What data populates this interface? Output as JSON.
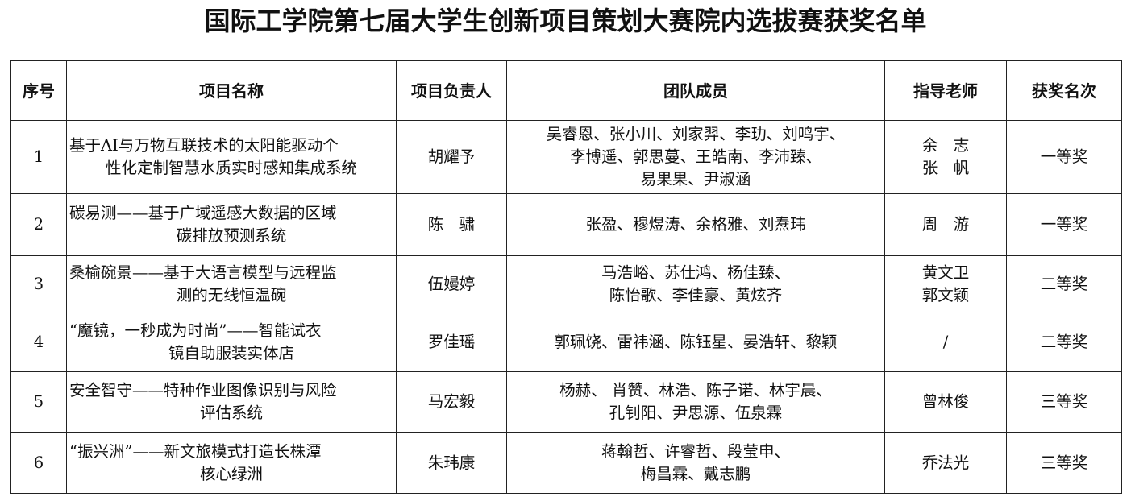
{
  "title": "国际工学院第七届大学生创新项目策划大赛院内选拔赛获奖名单",
  "headers": [
    "序号",
    "项目名称",
    "项目负责人",
    "团队成员",
    "指导老师",
    "获奖名次"
  ],
  "rows": [
    {
      "no": "1",
      "project": [
        "基于AI与万物互联技术的太阳能驱动个",
        "性化定制智慧水质实时感知集成系统"
      ],
      "leader": "胡耀予",
      "members": [
        "吴睿恩、张小川、刘家羿、李玏、刘鸣宇、",
        "李博遥、郭思蔓、王皓南、李沛臻、",
        "易果果、尹淑涵"
      ],
      "advisor": [
        "余　志",
        "张　帆"
      ],
      "award": "一等奖"
    },
    {
      "no": "2",
      "project": [
        "碳易测——基于广域遥感大数据的区域",
        "碳排放预测系统"
      ],
      "leader": "陈　骕",
      "members": [
        "张盈、穆煜涛、余格雅、刘焘玮"
      ],
      "advisor": [
        "周　游"
      ],
      "award": "一等奖"
    },
    {
      "no": "3",
      "project": [
        "桑榆碗景——基于大语言模型与远程监",
        "测的无线恒温碗"
      ],
      "leader": "伍嫚婷",
      "members": [
        "马浩峪、苏仕鸿、杨佳臻、",
        "陈怡歌、李佳豪、黄炫齐"
      ],
      "advisor": [
        "黄文卫",
        "郭文颖"
      ],
      "award": "二等奖"
    },
    {
      "no": "4",
      "project": [
        "“魔镜，一秒成为时尚”——智能试衣",
        "镜自助服装实体店"
      ],
      "leader": "罗佳瑶",
      "members": [
        "郭珮饶、雷祎涵、陈钰星、晏浩轩、黎颖"
      ],
      "advisor": [
        "/"
      ],
      "award": "二等奖"
    },
    {
      "no": "5",
      "project": [
        "安全智守——特种作业图像识别与风险",
        "评估系统"
      ],
      "leader": "马宏毅",
      "members": [
        "杨赫、 肖赞、林浩、陈子诺、林宇晨、",
        "孔钊阳、尹思源、伍泉霖"
      ],
      "advisor": [
        "曾林俊"
      ],
      "award": "三等奖"
    },
    {
      "no": "6",
      "project": [
        "“振兴洲”——新文旅模式打造长株潭",
        "核心绿洲"
      ],
      "leader": "朱玮康",
      "members": [
        "蒋翰哲、许睿哲、段莹申、",
        "梅昌霖、戴志鹏"
      ],
      "advisor": [
        "乔法光"
      ],
      "award": "三等奖"
    }
  ]
}
